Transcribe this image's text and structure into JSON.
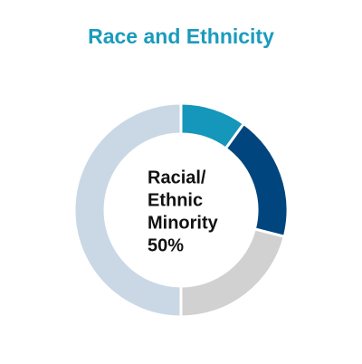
{
  "chart_data": {
    "type": "donut",
    "title": "Race and Ethnicity",
    "values": [
      10,
      19,
      21,
      50
    ],
    "colors": [
      "#1596bb",
      "#00457e",
      "#d1d1d1",
      "#c9d8e4"
    ],
    "center_label": [
      "Racial/",
      "Ethnic",
      "Minority",
      "50%"
    ]
  }
}
